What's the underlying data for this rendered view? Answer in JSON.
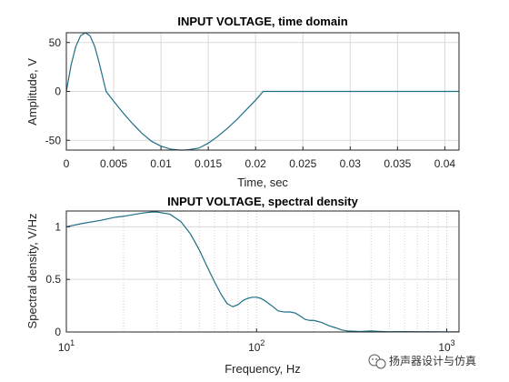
{
  "chart_data": [
    {
      "type": "line",
      "title": "INPUT VOLTAGE, time domain",
      "xlabel": "Time, sec",
      "ylabel": "Amplitude, V",
      "xlim": [
        0,
        0.0415
      ],
      "ylim": [
        -60,
        60
      ],
      "x_ticks": [
        0,
        0.005,
        0.01,
        0.015,
        0.02,
        0.025,
        0.03,
        0.035,
        0.04
      ],
      "x_tick_labels": [
        "0",
        "0.005",
        "0.01",
        "0.015",
        "0.02",
        "0.025",
        "0.03",
        "0.035",
        "0.04"
      ],
      "y_ticks": [
        -50,
        0,
        50
      ],
      "y_tick_labels": [
        "-50",
        "0",
        "50"
      ],
      "grid": true,
      "line_color": "#1f6f86",
      "series": [
        {
          "x": [
            0,
            0.0005,
            0.001,
            0.0015,
            0.002,
            0.0025,
            0.003,
            0.0035,
            0.0042,
            0.005,
            0.006,
            0.007,
            0.008,
            0.009,
            0.01,
            0.011,
            0.012,
            0.0125,
            0.013,
            0.014,
            0.015,
            0.016,
            0.017,
            0.018,
            0.019,
            0.02,
            0.0208,
            0.025,
            0.03,
            0.035,
            0.04,
            0.0415
          ],
          "y": [
            0,
            27,
            46,
            57,
            60,
            57,
            46,
            28,
            0,
            -10,
            -22,
            -33,
            -43,
            -51,
            -56,
            -59,
            -60,
            -60,
            -59.5,
            -58,
            -53,
            -46,
            -38,
            -29,
            -19,
            -9,
            0,
            0,
            0,
            0,
            0,
            0
          ]
        }
      ]
    },
    {
      "type": "line",
      "title": "INPUT VOLTAGE, spectral density",
      "xlabel": "Frequency, Hz",
      "ylabel": "Spectral density, V/Hz",
      "xscale": "log",
      "xlim": [
        10,
        1000
      ],
      "x_axis_max": 1160,
      "ylim": [
        0,
        1.15
      ],
      "x_ticks": [
        10,
        100,
        1000
      ],
      "x_tick_labels": [
        "10",
        "10",
        "10"
      ],
      "x_tick_exponents": [
        "1",
        "2",
        "3"
      ],
      "y_ticks": [
        0,
        0.5,
        1
      ],
      "y_tick_labels": [
        "0",
        "0.5",
        "1"
      ],
      "grid": true,
      "line_color": "#1f6f86",
      "series": [
        {
          "x": [
            10,
            12,
            15,
            18,
            20,
            25,
            28,
            30,
            35,
            40,
            45,
            50,
            55,
            60,
            65,
            70,
            75,
            80,
            85,
            90,
            95,
            100,
            105,
            110,
            120,
            130,
            140,
            150,
            160,
            170,
            180,
            190,
            200,
            220,
            240,
            260,
            280,
            300,
            350,
            400,
            450,
            500,
            600,
            700,
            800,
            1000,
            1160
          ],
          "y": [
            1.0,
            1.03,
            1.06,
            1.09,
            1.1,
            1.13,
            1.14,
            1.14,
            1.12,
            1.05,
            0.93,
            0.78,
            0.62,
            0.48,
            0.36,
            0.27,
            0.24,
            0.26,
            0.3,
            0.32,
            0.33,
            0.33,
            0.32,
            0.3,
            0.25,
            0.2,
            0.19,
            0.19,
            0.18,
            0.15,
            0.12,
            0.11,
            0.11,
            0.09,
            0.06,
            0.04,
            0.02,
            0.01,
            0.005,
            0.01,
            0.005,
            0.002,
            0.003,
            0.002,
            0.002,
            0.001,
            0.001
          ]
        }
      ]
    }
  ],
  "watermark": {
    "text": "扬声器设计与仿真",
    "icon": "wechat-icon"
  }
}
